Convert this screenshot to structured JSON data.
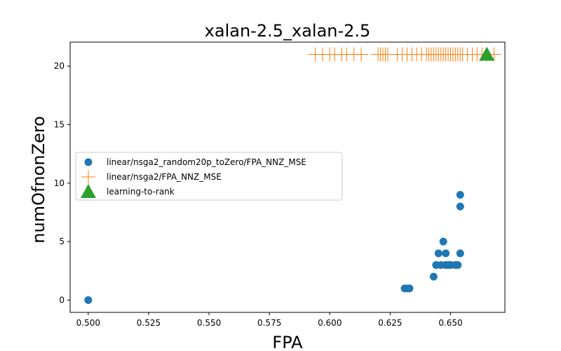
{
  "chart_data": {
    "type": "scatter",
    "title": "xalan-2.5_xalan-2.5",
    "xlabel": "FPA",
    "ylabel": "numOfnonZero",
    "xlim": [
      0.4925,
      0.6725
    ],
    "ylim": [
      -1.05,
      22.05
    ],
    "xticks": [
      0.5,
      0.525,
      0.55,
      0.575,
      0.6,
      0.625,
      0.65
    ],
    "xtick_labels": [
      "0.500",
      "0.525",
      "0.550",
      "0.575",
      "0.600",
      "0.625",
      "0.650"
    ],
    "yticks": [
      0,
      5,
      10,
      15,
      20
    ],
    "ytick_labels": [
      "0",
      "5",
      "10",
      "15",
      "20"
    ],
    "grid": false,
    "legend_location": "center-left",
    "series": [
      {
        "name": "linear/nsga2_random20p_toZero/FPA_NNZ_MSE",
        "marker": "circle",
        "color": "#1f77b4",
        "points": [
          [
            0.5,
            0
          ],
          [
            0.631,
            1
          ],
          [
            0.632,
            1
          ],
          [
            0.633,
            1
          ],
          [
            0.643,
            2
          ],
          [
            0.644,
            3
          ],
          [
            0.646,
            3
          ],
          [
            0.648,
            3
          ],
          [
            0.649,
            3
          ],
          [
            0.65,
            3
          ],
          [
            0.652,
            3
          ],
          [
            0.653,
            3
          ],
          [
            0.645,
            4
          ],
          [
            0.648,
            4
          ],
          [
            0.654,
            4
          ],
          [
            0.647,
            5
          ],
          [
            0.654,
            8
          ],
          [
            0.654,
            9
          ]
        ]
      },
      {
        "name": "linear/nsga2/FPA_NNZ_MSE",
        "marker": "plus",
        "color": "#ff7f0e",
        "points": [
          [
            0.594,
            21
          ],
          [
            0.597,
            21
          ],
          [
            0.6,
            21
          ],
          [
            0.602,
            21
          ],
          [
            0.605,
            21
          ],
          [
            0.607,
            21
          ],
          [
            0.61,
            21
          ],
          [
            0.613,
            21
          ],
          [
            0.62,
            21
          ],
          [
            0.621,
            21
          ],
          [
            0.622,
            21
          ],
          [
            0.623,
            21
          ],
          [
            0.624,
            21
          ],
          [
            0.628,
            21
          ],
          [
            0.63,
            21
          ],
          [
            0.632,
            21
          ],
          [
            0.634,
            21
          ],
          [
            0.636,
            21
          ],
          [
            0.638,
            21
          ],
          [
            0.64,
            21
          ],
          [
            0.641,
            21
          ],
          [
            0.642,
            21
          ],
          [
            0.643,
            21
          ],
          [
            0.644,
            21
          ],
          [
            0.645,
            21
          ],
          [
            0.646,
            21
          ],
          [
            0.647,
            21
          ],
          [
            0.648,
            21
          ],
          [
            0.649,
            21
          ],
          [
            0.65,
            21
          ],
          [
            0.651,
            21
          ],
          [
            0.652,
            21
          ],
          [
            0.653,
            21
          ],
          [
            0.654,
            21
          ],
          [
            0.655,
            21
          ],
          [
            0.657,
            21
          ],
          [
            0.659,
            21
          ],
          [
            0.661,
            21
          ],
          [
            0.663,
            21
          ],
          [
            0.665,
            21
          ],
          [
            0.668,
            21
          ]
        ]
      },
      {
        "name": "learning-to-rank",
        "marker": "triangle",
        "color": "#2ca02c",
        "points": [
          [
            0.665,
            21
          ]
        ]
      }
    ]
  }
}
